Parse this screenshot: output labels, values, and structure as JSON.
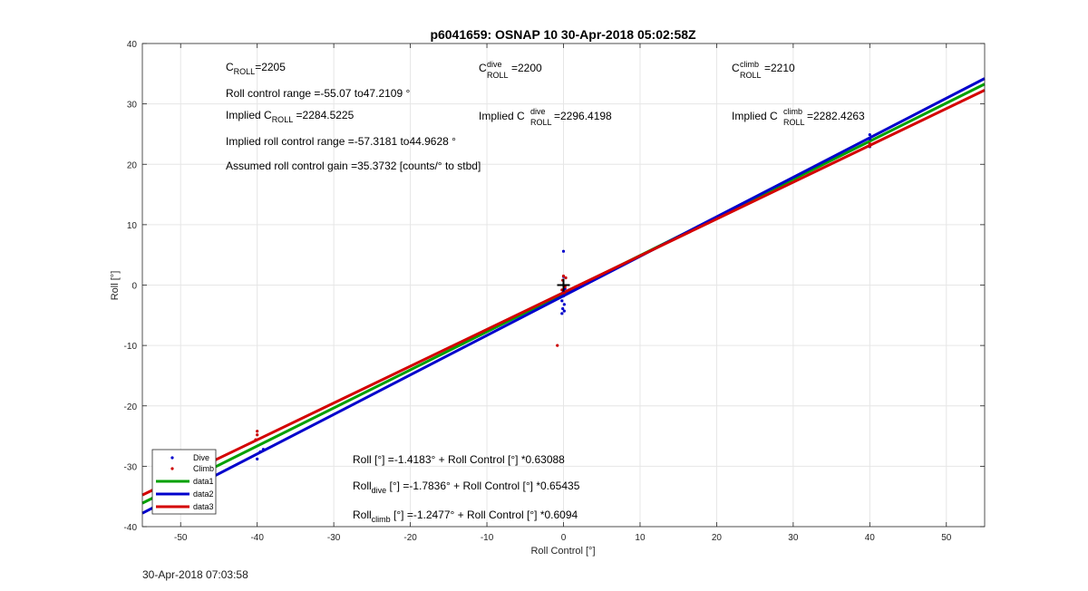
{
  "figure_title": "p6041659: OSNAP 10 30-Apr-2018 05:02:58Z",
  "footer_timestamp": "30-Apr-2018 07:03:58",
  "chart_data": {
    "type": "scatter",
    "title": "p6041659: OSNAP 10 30-Apr-2018 05:02:58Z",
    "xlabel": "Roll Control [°]",
    "ylabel": "Roll [°]",
    "xlim": [
      -55,
      55
    ],
    "ylim": [
      -40,
      40
    ],
    "x_ticks": [
      -50,
      -40,
      -30,
      -20,
      -10,
      0,
      10,
      20,
      30,
      40,
      50
    ],
    "y_ticks": [
      -40,
      -30,
      -20,
      -10,
      0,
      10,
      20,
      30,
      40
    ],
    "grid": true,
    "legend_position": "bottom-left",
    "legend": [
      "Dive",
      "Climb",
      "data1",
      "data2",
      "data3"
    ],
    "series": [
      {
        "name": "Dive",
        "kind": "points",
        "color": "#0000cc",
        "points": [
          [
            -40,
            -28.8
          ],
          [
            -39.6,
            -27.6
          ],
          [
            -39.2,
            -27.2
          ],
          [
            0,
            5.6
          ],
          [
            0,
            1.4
          ],
          [
            0,
            -1.0
          ],
          [
            0,
            -1.8
          ],
          [
            -0.2,
            -2.6
          ],
          [
            0.1,
            -3.2
          ],
          [
            -0.1,
            -3.9
          ],
          [
            0.1,
            -4.3
          ],
          [
            -0.2,
            -4.7
          ],
          [
            0.2,
            -0.6
          ],
          [
            40,
            24.9
          ],
          [
            40,
            24.2
          ],
          [
            40,
            22.9
          ]
        ]
      },
      {
        "name": "Climb",
        "kind": "points",
        "color": "#cc0000",
        "points": [
          [
            -40,
            -24.2
          ],
          [
            -40,
            -24.8
          ],
          [
            -40.2,
            -25.6
          ],
          [
            -0.8,
            -10.0
          ],
          [
            0,
            1.5
          ],
          [
            0.3,
            1.2
          ],
          [
            -0.1,
            0.8
          ],
          [
            0.2,
            -0.3
          ],
          [
            -0.2,
            -0.8
          ],
          [
            0.1,
            -1.3
          ],
          [
            40,
            23.4
          ],
          [
            40,
            23.0
          ]
        ]
      },
      {
        "name": "data1",
        "kind": "line",
        "color": "#00a000",
        "intercept": -1.4183,
        "slope": 0.63088
      },
      {
        "name": "data2",
        "kind": "line",
        "color": "#0000cc",
        "intercept": -1.7836,
        "slope": 0.65435
      },
      {
        "name": "data3",
        "kind": "line",
        "color": "#d40000",
        "intercept": -1.2477,
        "slope": 0.6094
      }
    ],
    "marker": {
      "x": 0,
      "y": 0,
      "symbol": "+"
    }
  },
  "annotations": {
    "c_roll": {
      "main": "C",
      "sub": "ROLL",
      "value": "=2205"
    },
    "c_roll_dive": {
      "main": "C",
      "sup": "dive",
      "sub": "ROLL",
      "value": " =2200"
    },
    "c_roll_climb": {
      "main": "C",
      "sup": "climb",
      "sub": "ROLL",
      "value": " =2210"
    },
    "roll_control_range": "Roll control range =-55.07 to47.2109 °",
    "implied_c_roll": {
      "prefix": "Implied C",
      "sub": "ROLL",
      "value": " =2284.5225"
    },
    "implied_c_roll_dive": {
      "prefix": "Implied C",
      "sup": "dive",
      "sub": "ROLL",
      "value": "=2296.4198"
    },
    "implied_c_roll_climb": {
      "prefix": "Implied C",
      "sup": "climb",
      "sub": "ROLL",
      "value": " =2282.4263"
    },
    "implied_roll_control_range": "Implied roll control range =-57.3181 to44.9628 °",
    "assumed_gain": "Assumed roll control gain =35.3732 [counts/° to stbd]",
    "fit_all": {
      "prefix": "Roll [°] =-1.4183° + Roll Control [°] *0.63088"
    },
    "fit_dive": {
      "prefix": "Roll",
      "sub": "dive",
      "rest": " [°] =-1.7836° + Roll Control [°] *0.65435"
    },
    "fit_climb": {
      "prefix": "Roll",
      "sub": "climb",
      "rest": " [°] =-1.2477° + Roll Control [°] *0.6094"
    }
  },
  "colors": {
    "axis": "#262626",
    "grid": "#e6e6e6",
    "dive": "#0000cc",
    "climb": "#cc0000",
    "all": "#00a000",
    "fit_dive": "#0000cc",
    "fit_climb": "#d40000"
  }
}
